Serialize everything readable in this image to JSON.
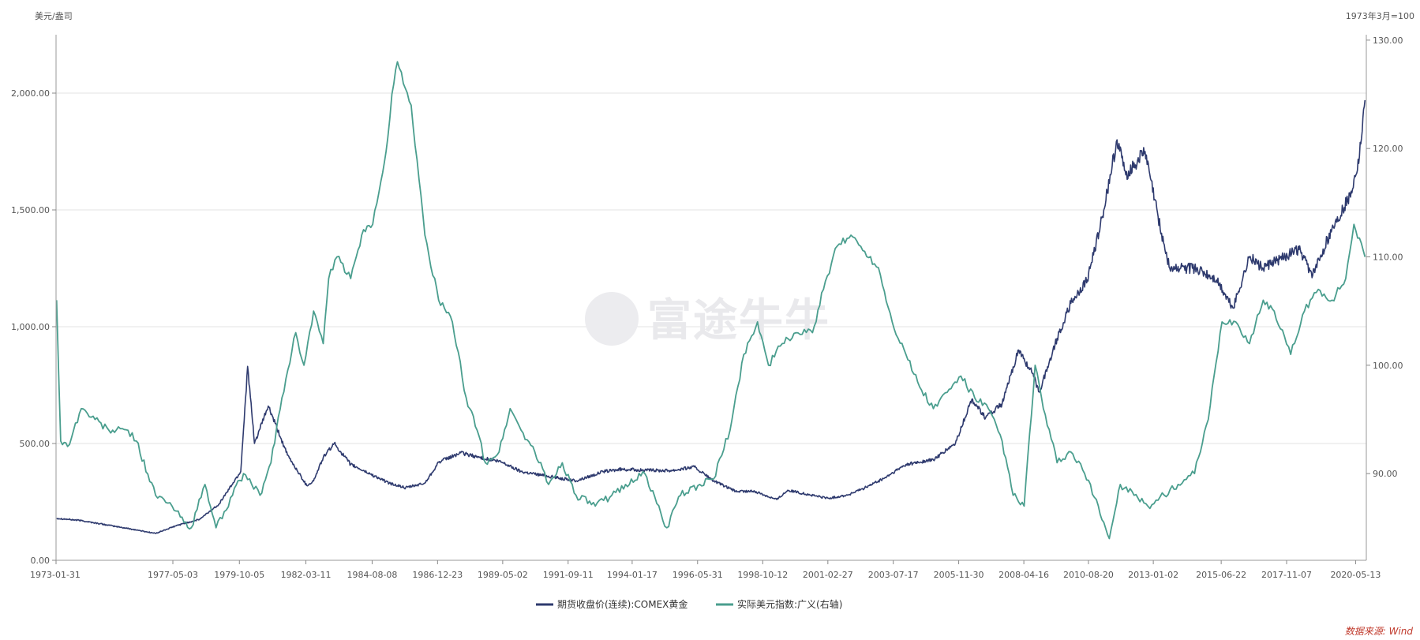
{
  "chart_data": {
    "type": "line",
    "title": "",
    "watermark": "富途牛牛",
    "source": "数据来源: Wind",
    "left_axis": {
      "unit_label": "美元/盎司",
      "ylim": [
        0,
        2250
      ],
      "ticks": [
        0,
        500,
        1000,
        1500,
        2000
      ],
      "tick_labels": [
        "0.00",
        "500.00",
        "1,000.00",
        "1,500.00",
        "2,000.00"
      ]
    },
    "right_axis": {
      "unit_label": "1973年3月=100",
      "ylim": [
        82,
        130.5
      ],
      "ticks": [
        90,
        100,
        110,
        120,
        130
      ],
      "tick_labels": [
        "90.00",
        "100.00",
        "110.00",
        "120.00",
        "130.00"
      ]
    },
    "x_axis": {
      "range": [
        1973.08,
        2020.75
      ],
      "ticks": [
        1973.08,
        1977.33,
        1979.75,
        1982.17,
        1984.58,
        1986.96,
        1989.33,
        1991.71,
        1994.04,
        1996.42,
        1998.79,
        2001.16,
        2003.54,
        2005.92,
        2008.29,
        2010.64,
        2013.0,
        2015.47,
        2017.85,
        2020.36
      ],
      "tick_labels": [
        "1973-01-31",
        "1977-05-03",
        "1979-10-05",
        "1982-03-11",
        "1984-08-08",
        "1986-12-23",
        "1989-05-02",
        "1991-09-11",
        "1994-01-17",
        "1996-05-31",
        "1998-10-12",
        "2001-02-27",
        "2003-07-17",
        "2005-11-30",
        "2008-04-16",
        "2010-08-20",
        "2013-01-02",
        "2015-06-22",
        "2017-11-07",
        "2020-05-13"
      ]
    },
    "series": [
      {
        "name": "期货收盘价(连续):COMEX黄金",
        "axis": "left",
        "color": "#2e3a6e",
        "x": [
          1973.1,
          1974.0,
          1975.0,
          1976.0,
          1976.7,
          1977.5,
          1978.3,
          1979.0,
          1979.8,
          1980.05,
          1980.3,
          1980.8,
          1981.5,
          1982.2,
          1982.45,
          1982.8,
          1983.2,
          1983.8,
          1984.5,
          1985.2,
          1985.8,
          1986.5,
          1987.0,
          1987.8,
          1988.5,
          1989.3,
          1990.0,
          1991.0,
          1992.0,
          1993.0,
          1993.7,
          1994.5,
          1995.5,
          1996.3,
          1997.0,
          1997.8,
          1998.5,
          1999.3,
          1999.7,
          2000.5,
          2001.2,
          2001.9,
          2002.5,
          2003.2,
          2004.0,
          2005.0,
          2005.8,
          2006.4,
          2006.9,
          2007.5,
          2008.1,
          2008.6,
          2008.85,
          2009.5,
          2010.0,
          2010.6,
          2011.2,
          2011.68,
          2012.0,
          2012.7,
          2013.3,
          2013.6,
          2014.5,
          2015.3,
          2015.9,
          2016.5,
          2017.0,
          2017.6,
          2018.3,
          2018.8,
          2019.5,
          2019.9,
          2020.2,
          2020.5,
          2020.7
        ],
        "y": [
          180,
          170,
          150,
          130,
          115,
          150,
          175,
          240,
          380,
          830,
          500,
          660,
          450,
          320,
          340,
          440,
          500,
          410,
          370,
          330,
          310,
          330,
          420,
          460,
          440,
          420,
          380,
          360,
          340,
          380,
          390,
          385,
          385,
          400,
          340,
          295,
          295,
          260,
          300,
          280,
          265,
          280,
          310,
          350,
          410,
          430,
          500,
          690,
          610,
          670,
          900,
          800,
          720,
          950,
          1100,
          1200,
          1500,
          1800,
          1650,
          1750,
          1400,
          1250,
          1250,
          1200,
          1080,
          1300,
          1250,
          1290,
          1330,
          1220,
          1420,
          1500,
          1580,
          1730,
          1970
        ]
      },
      {
        "name": "实际美元指数:广义(右轴)",
        "axis": "right",
        "color": "#4a9e8e",
        "x": [
          1973.1,
          1973.25,
          1973.5,
          1974.0,
          1974.5,
          1975.0,
          1975.7,
          1976.0,
          1976.7,
          1977.3,
          1977.6,
          1978.0,
          1978.5,
          1978.9,
          1979.5,
          1979.9,
          1980.2,
          1980.5,
          1980.9,
          1981.3,
          1981.8,
          1982.1,
          1982.45,
          1982.8,
          1983.0,
          1983.3,
          1983.8,
          1984.2,
          1984.6,
          1984.9,
          1985.15,
          1985.3,
          1985.5,
          1986.0,
          1986.5,
          1987.0,
          1987.5,
          1988.0,
          1988.4,
          1988.7,
          1989.2,
          1989.6,
          1990.0,
          1990.5,
          1991.0,
          1991.5,
          1992.0,
          1992.7,
          1993.3,
          1993.8,
          1994.5,
          1995.3,
          1995.8,
          1996.5,
          1997.0,
          1997.6,
          1998.1,
          1998.6,
          1999.0,
          1999.5,
          2000.0,
          2000.6,
          2001.0,
          2001.5,
          2002.0,
          2002.5,
          2003.0,
          2003.5,
          2004.0,
          2004.5,
          2005.0,
          2005.5,
          2006.0,
          2006.5,
          2007.0,
          2007.5,
          2007.9,
          2008.3,
          2008.7,
          2009.0,
          2009.5,
          2010.0,
          2010.5,
          2011.0,
          2011.4,
          2011.8,
          2012.3,
          2012.8,
          2013.4,
          2013.9,
          2014.5,
          2015.0,
          2015.5,
          2016.0,
          2016.5,
          2017.0,
          2017.4,
          2018.0,
          2018.5,
          2019.0,
          2019.5,
          2020.0,
          2020.3,
          2020.7
        ],
        "y": [
          106,
          93,
          92.5,
          96,
          95,
          94,
          94,
          93,
          88,
          87,
          86,
          85,
          89,
          85,
          88,
          90,
          89,
          88,
          91,
          97,
          103,
          100,
          105,
          102,
          108,
          110,
          108,
          112,
          113,
          117,
          121,
          125,
          128,
          124,
          112,
          106,
          104,
          97,
          94,
          91,
          92,
          96,
          94,
          92,
          89,
          91,
          88,
          87,
          88,
          89,
          90,
          85,
          88,
          89,
          89.5,
          94,
          101,
          104,
          100,
          102,
          103,
          103,
          107,
          111,
          112,
          110.5,
          109,
          104,
          101,
          98,
          96,
          97.5,
          99,
          97,
          96,
          93,
          88,
          87,
          100,
          96,
          91,
          92,
          90,
          87,
          84,
          89,
          88,
          87,
          88,
          89,
          90,
          95,
          104,
          104,
          102,
          106,
          105,
          101,
          105,
          107,
          106,
          108,
          113,
          110
        ]
      }
    ]
  }
}
